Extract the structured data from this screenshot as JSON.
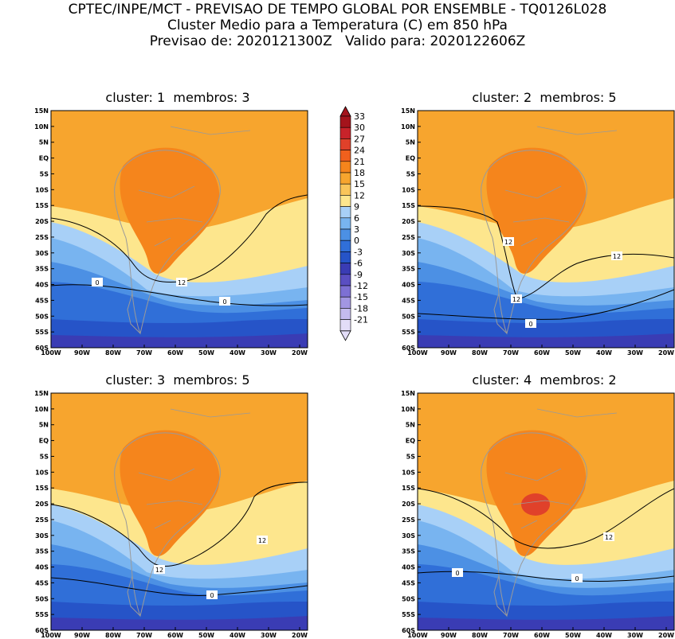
{
  "header": {
    "line1": "CPTEC/INPE/MCT - PREVISAO DE TEMPO GLOBAL POR ENSEMBLE - TQ0126L028",
    "line2": "Cluster Medio para a Temperatura (C) em 850 hPa",
    "line3": "Previsao de: 2020121300Z   Valido para: 2020122606Z"
  },
  "panels": [
    {
      "title": "cluster: 1  membros: 3",
      "contour_labels": [
        "0",
        "0",
        "12"
      ]
    },
    {
      "title": "cluster: 2  membros: 5",
      "contour_labels": [
        "12",
        "12",
        "12",
        "0"
      ]
    },
    {
      "title": "cluster: 3  membros: 5",
      "contour_labels": [
        "12",
        "12",
        "0"
      ]
    },
    {
      "title": "cluster: 4  membros: 2",
      "contour_labels": [
        "12",
        "0",
        "0"
      ]
    }
  ],
  "axes": {
    "lat_labels": [
      "15N",
      "10N",
      "5N",
      "EQ",
      "5S",
      "10S",
      "15S",
      "20S",
      "25S",
      "30S",
      "35S",
      "40S",
      "45S",
      "50S",
      "55S",
      "60S"
    ],
    "lon_labels": [
      "100W",
      "90W",
      "80W",
      "70W",
      "60W",
      "50W",
      "40W",
      "30W",
      "20W"
    ]
  },
  "colorbar": {
    "labels": [
      "33",
      "30",
      "27",
      "24",
      "21",
      "18",
      "15",
      "12",
      "9",
      "6",
      "3",
      "0",
      "-3",
      "-6",
      "-9",
      "-12",
      "-15",
      "-18",
      "-21"
    ],
    "colors": [
      "#a4141c",
      "#c8232a",
      "#e0412a",
      "#f0601d",
      "#f5851c",
      "#f7a52e",
      "#f9c55a",
      "#fde68d",
      "#a8d0f7",
      "#78b4f0",
      "#4c90e4",
      "#306fd8",
      "#2654c8",
      "#3a3cb4",
      "#5a4fc2",
      "#7d70d4",
      "#a296e2",
      "#c4bbee",
      "#e3ddf8"
    ]
  },
  "colors": {
    "land_outline": "#9a9a9a",
    "contour": "#000000"
  }
}
